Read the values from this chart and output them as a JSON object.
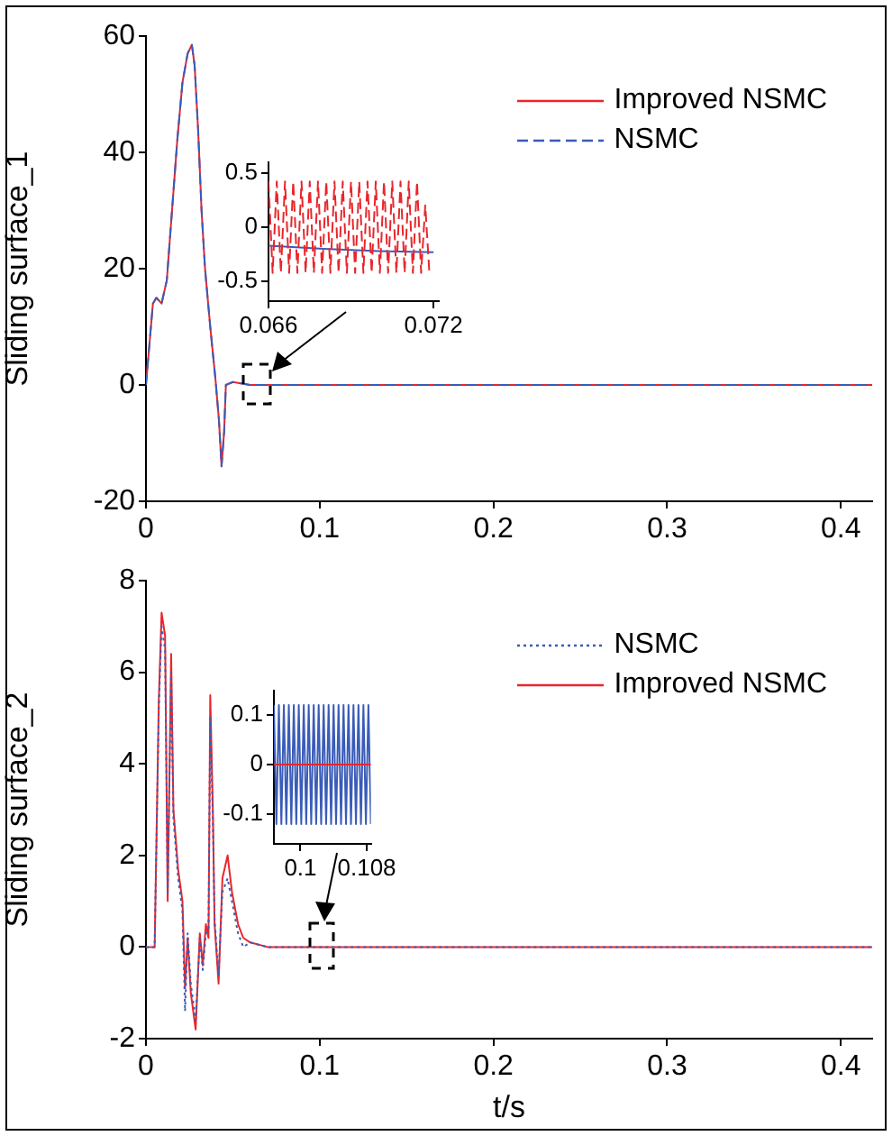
{
  "chart_data": [
    {
      "type": "line",
      "ylabel": "Sliding surface_1",
      "xlim": [
        0,
        0.418
      ],
      "xticks": [
        0,
        0.1,
        0.2,
        0.3,
        0.4
      ],
      "ylim": [
        -20,
        60
      ],
      "yticks": [
        -20,
        0,
        20,
        40,
        60
      ],
      "legend": "top right",
      "x": [
        0,
        0.002,
        0.004,
        0.006,
        0.009,
        0.012,
        0.015,
        0.018,
        0.021,
        0.024,
        0.0264,
        0.028,
        0.03,
        0.032,
        0.034,
        0.037,
        0.04,
        0.042,
        0.0435,
        0.045,
        0.046,
        0.05,
        0.06,
        0.08,
        0.1,
        0.2,
        0.3,
        0.418
      ],
      "series": [
        {
          "name": "Improved NSMC",
          "color": "#e8262b",
          "line_style": "solid",
          "values": [
            0,
            7,
            14,
            15,
            14,
            18,
            30,
            42,
            52,
            57,
            58.5,
            55,
            44,
            30,
            20,
            10,
            1,
            -6,
            -14,
            -8,
            0,
            0.5,
            0,
            0,
            0,
            0,
            0,
            0
          ]
        },
        {
          "name": "NSMC",
          "color": "#3a5cb8",
          "line_style": "dashed",
          "values": [
            0,
            7,
            14,
            15,
            14,
            18,
            30,
            42,
            52,
            57,
            58.5,
            55,
            44,
            30,
            20,
            10,
            1,
            -6,
            -14,
            -8,
            0,
            0.5,
            0,
            0,
            0,
            0,
            0,
            0
          ]
        }
      ]
    },
    {
      "type": "line",
      "xlim": [
        0.066,
        0.0722
      ],
      "xticks": [
        0.066,
        0.072
      ],
      "ylim": [
        -0.68,
        0.6
      ],
      "yticks": [
        -0.5,
        0,
        0.5
      ],
      "series": [
        {
          "color": "#e8262b",
          "line_style": "dashed",
          "x": [
            0.066,
            0.06615,
            0.0663,
            0.06645,
            0.0666,
            0.06675,
            0.0669,
            0.06705,
            0.0672,
            0.06735,
            0.0675,
            0.06765,
            0.0678,
            0.06795,
            0.0681,
            0.06825,
            0.0684,
            0.06855,
            0.0687,
            0.06885,
            0.069,
            0.06915,
            0.0693,
            0.06945,
            0.0696,
            0.06975,
            0.0699,
            0.07005,
            0.0702,
            0.07035,
            0.0705,
            0.07065,
            0.0708,
            0.07095,
            0.0711,
            0.07125,
            0.0714,
            0.07155,
            0.0717,
            0.07185
          ],
          "values": [
            0.42,
            -0.42,
            0.42,
            -0.42,
            0.42,
            -0.42,
            0.42,
            -0.42,
            0.42,
            -0.42,
            0.42,
            -0.42,
            0.42,
            -0.42,
            0.42,
            -0.42,
            0.42,
            -0.42,
            0.42,
            -0.42,
            0.42,
            -0.42,
            0.42,
            -0.42,
            0.42,
            -0.42,
            0.42,
            -0.42,
            0.42,
            -0.42,
            0.42,
            -0.42,
            0.42,
            -0.42,
            0.42,
            -0.42,
            0.42,
            -0.42,
            0.2,
            -0.42
          ]
        },
        {
          "color": "#3a5cb8",
          "line_style": "solid",
          "x": [
            0.066,
            0.068,
            0.07,
            0.072
          ],
          "values": [
            -0.17,
            -0.2,
            -0.22,
            -0.23
          ]
        }
      ]
    },
    {
      "type": "line",
      "ylabel": "Sliding surface_2",
      "xlabel": "t/s",
      "xlim": [
        0,
        0.418
      ],
      "xticks": [
        0,
        0.1,
        0.2,
        0.3,
        0.4
      ],
      "ylim": [
        -2,
        8
      ],
      "yticks": [
        -2,
        0,
        2,
        4,
        6,
        8
      ],
      "legend": "top right",
      "x": [
        0,
        0.005,
        0.0074,
        0.009,
        0.011,
        0.0125,
        0.0145,
        0.0158,
        0.0185,
        0.021,
        0.0225,
        0.024,
        0.0258,
        0.0286,
        0.031,
        0.0327,
        0.0345,
        0.036,
        0.037,
        0.0385,
        0.0395,
        0.0418,
        0.044,
        0.047,
        0.0495,
        0.053,
        0.056,
        0.06,
        0.07,
        0.1,
        0.2,
        0.3,
        0.418
      ],
      "series": [
        {
          "name": "NSMC",
          "color": "#3a5cb8",
          "line_style": "dotted",
          "values": [
            0,
            0,
            5.2,
            7.0,
            6.5,
            1.2,
            6.0,
            2.8,
            1.5,
            0.8,
            -1.4,
            0.3,
            -0.8,
            -1.6,
            0.2,
            -0.5,
            0.3,
            0.4,
            5.0,
            2.8,
            0.6,
            -0.6,
            1.2,
            1.5,
            1.0,
            0.3,
            0,
            0.1,
            0,
            0,
            0,
            0,
            0
          ]
        },
        {
          "name": "Improved NSMC",
          "color": "#e8262b",
          "line_style": "solid",
          "values": [
            0,
            0,
            5.4,
            7.3,
            6.8,
            1.0,
            6.4,
            3.0,
            1.7,
            1.0,
            -0.9,
            0.2,
            -1.0,
            -1.8,
            0.3,
            -0.4,
            0.5,
            0.2,
            5.5,
            3.0,
            0.5,
            -0.8,
            1.5,
            2.0,
            1.2,
            0.5,
            0.2,
            0.1,
            0,
            0,
            0,
            0,
            0
          ]
        }
      ]
    },
    {
      "type": "line",
      "xlim": [
        0.0968,
        0.1085
      ],
      "xticks": [
        0.1,
        0.108
      ],
      "ylim": [
        -0.16,
        0.15
      ],
      "yticks": [
        -0.1,
        0,
        0.1
      ],
      "series": [
        {
          "color": "#3a5cb8",
          "line_style": "solid",
          "x": [
            0.0968,
            0.0971,
            0.0974,
            0.0977,
            0.098,
            0.0983,
            0.0986,
            0.0989,
            0.0992,
            0.0995,
            0.0998,
            0.1001,
            0.1004,
            0.1007,
            0.101,
            0.1013,
            0.1016,
            0.1019,
            0.1022,
            0.1025,
            0.1028,
            0.1031,
            0.1034,
            0.1037,
            0.104,
            0.1043,
            0.1046,
            0.1049,
            0.1052,
            0.1055,
            0.1058,
            0.1061,
            0.1064,
            0.1067,
            0.107,
            0.1073,
            0.1076,
            0.1079,
            0.1082,
            0.1085
          ],
          "values": [
            0.12,
            -0.12,
            0.12,
            -0.12,
            0.12,
            -0.12,
            0.12,
            -0.12,
            0.12,
            -0.12,
            0.12,
            -0.12,
            0.12,
            -0.12,
            0.12,
            -0.12,
            0.12,
            -0.12,
            0.12,
            -0.12,
            0.12,
            -0.12,
            0.12,
            -0.12,
            0.12,
            -0.12,
            0.12,
            -0.12,
            0.12,
            -0.12,
            0.12,
            -0.12,
            0.12,
            -0.12,
            0.12,
            -0.12,
            0.12,
            -0.12,
            0.12,
            -0.12
          ]
        },
        {
          "color": "#e8262b",
          "line_style": "solid",
          "x": [
            0.0968,
            0.1085
          ],
          "values": [
            0,
            0
          ]
        }
      ]
    }
  ]
}
